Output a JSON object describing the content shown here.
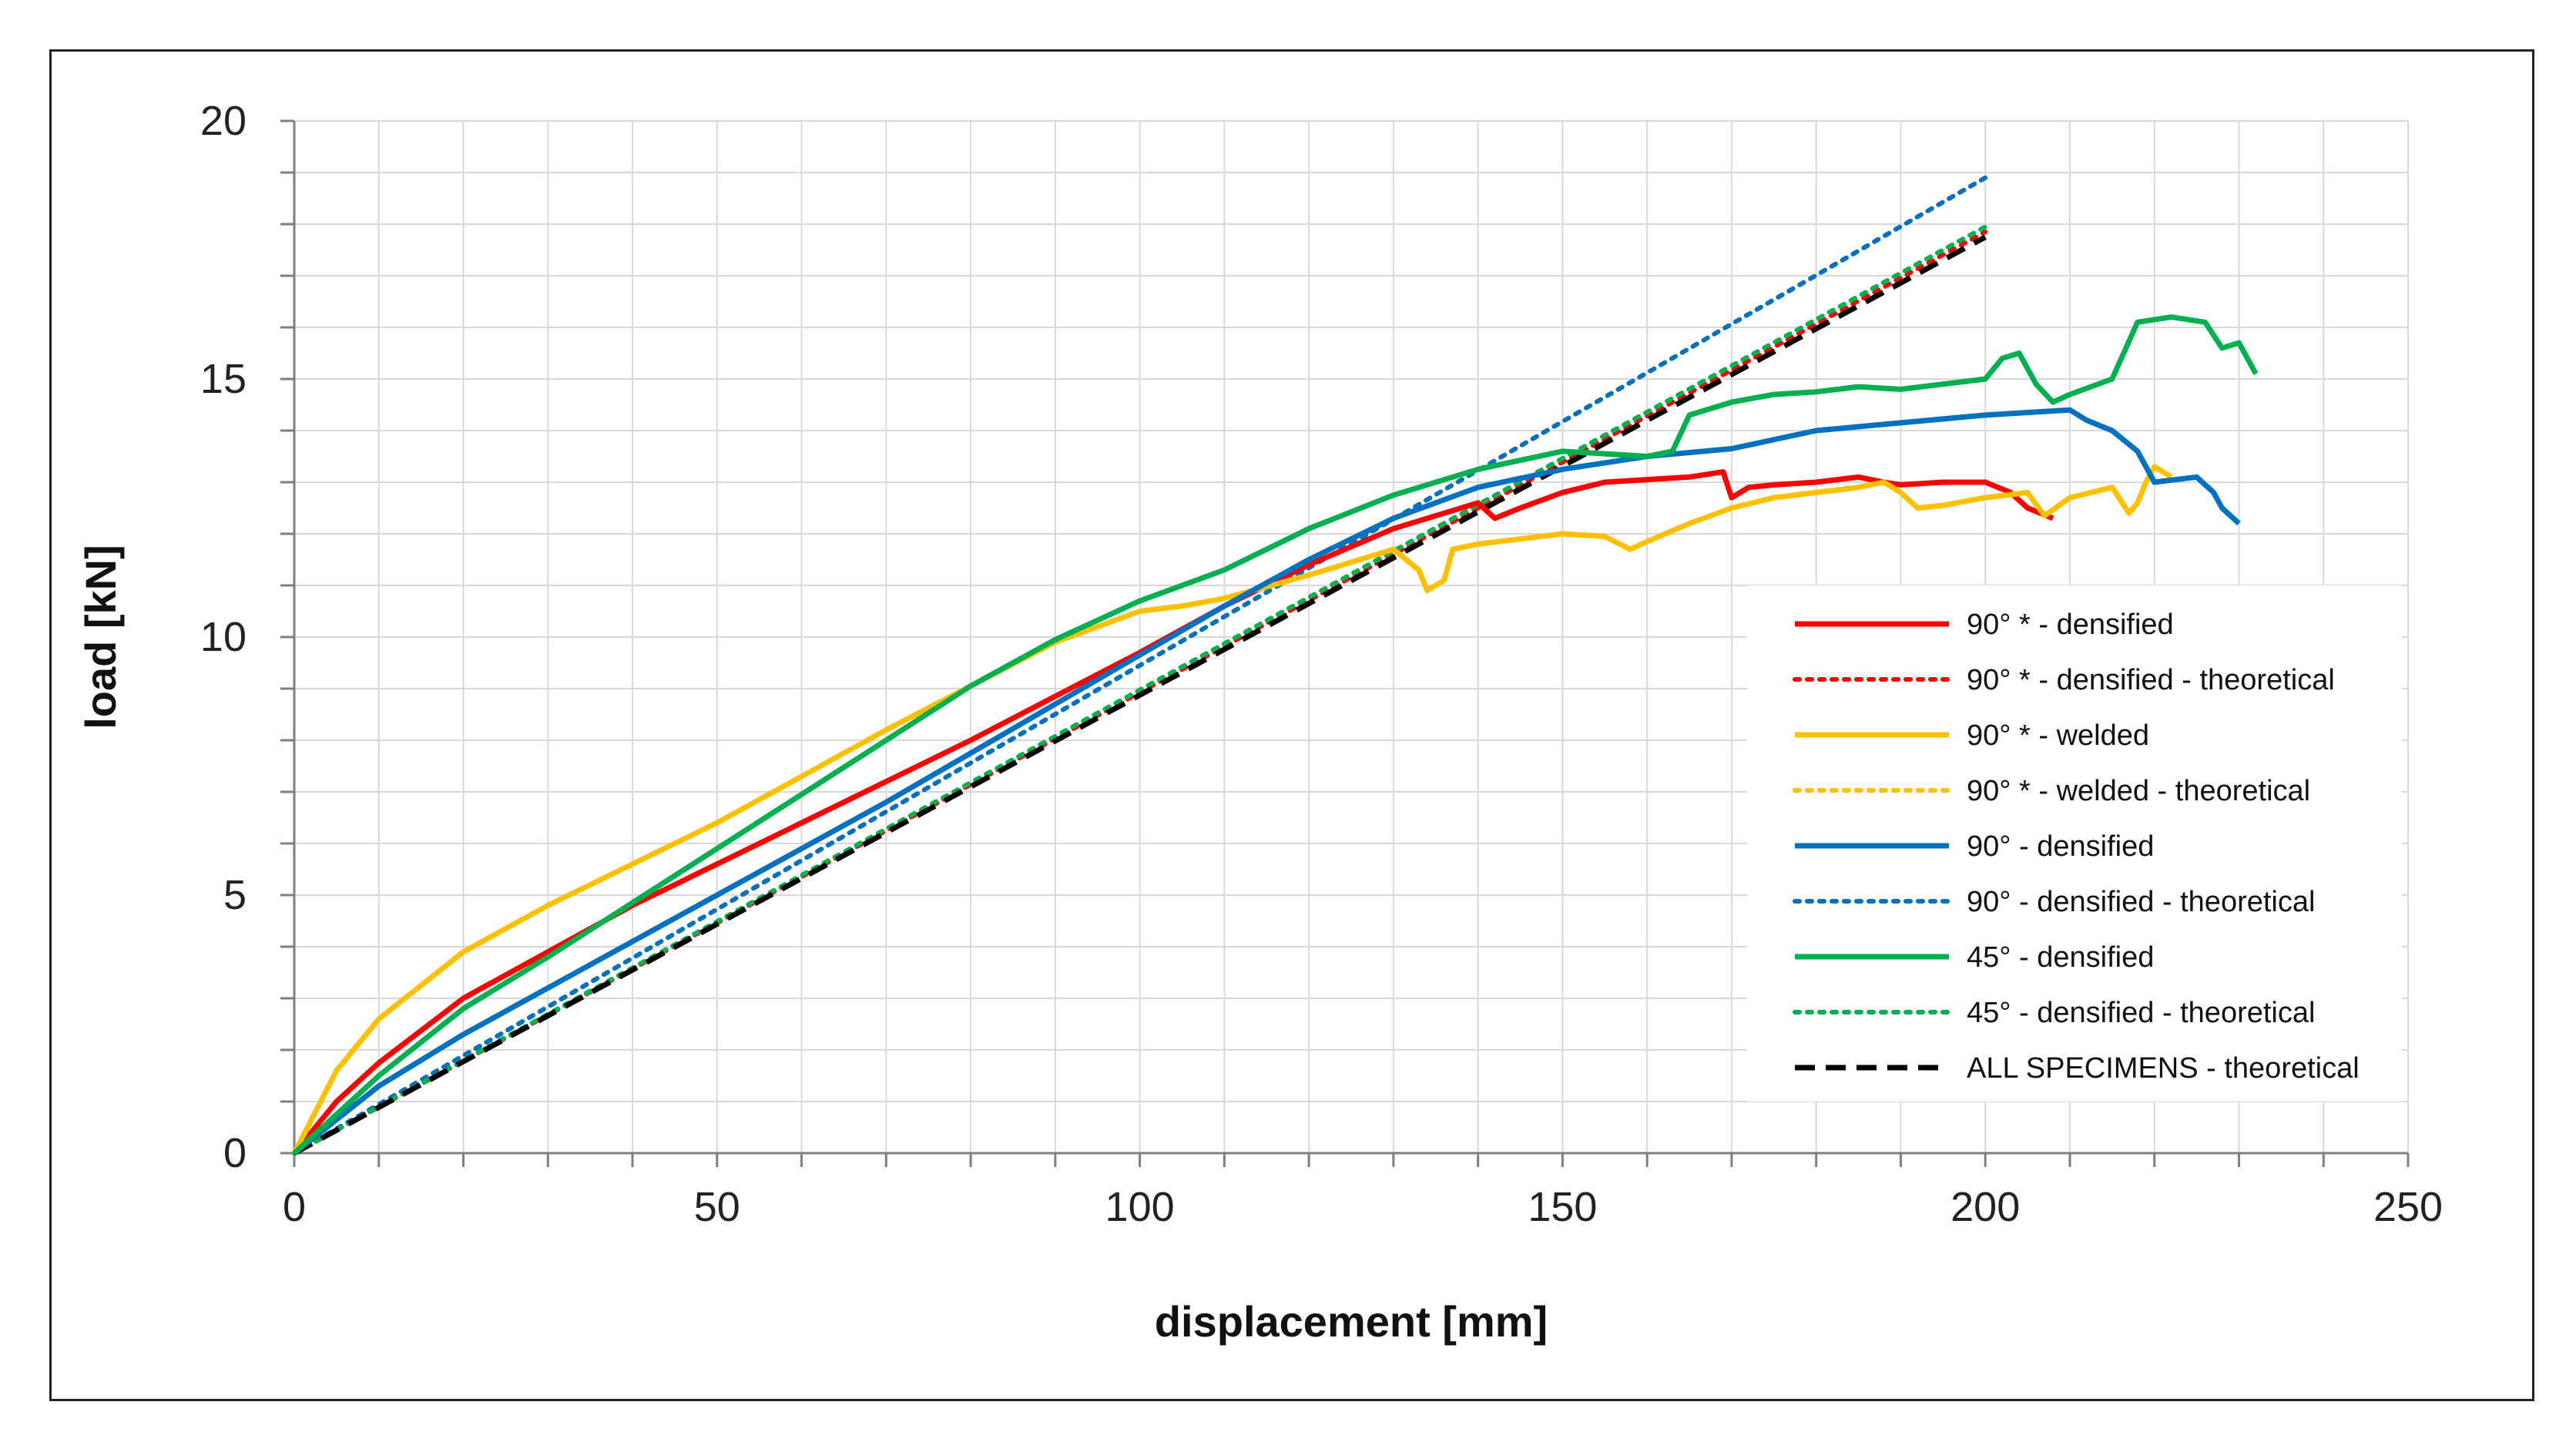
{
  "chart_data": {
    "type": "line",
    "title": "",
    "xlabel": "displacement [mm]",
    "ylabel": "load [kN]",
    "xlim": [
      0,
      250
    ],
    "ylim": [
      0,
      20
    ],
    "xticks": [
      "0",
      "50",
      "100",
      "150",
      "200",
      "250"
    ],
    "yticks": [
      "0",
      "5",
      "10",
      "15",
      "20"
    ],
    "grid": true,
    "legend_position": "right",
    "series": [
      {
        "name": "90° * - densified",
        "color": "#ff0000",
        "style": "solid",
        "x": [
          0,
          5,
          10,
          20,
          30,
          40,
          50,
          60,
          70,
          80,
          90,
          100,
          110,
          120,
          130,
          140,
          142,
          145,
          150,
          155,
          160,
          165,
          169,
          170,
          172,
          175,
          180,
          185,
          188,
          190,
          195,
          200,
          203,
          205,
          208
        ],
        "y": [
          0,
          1.0,
          1.75,
          3.0,
          3.9,
          4.8,
          5.6,
          6.4,
          7.2,
          8.0,
          8.85,
          9.7,
          10.6,
          11.4,
          12.1,
          12.6,
          12.3,
          12.5,
          12.8,
          13.0,
          13.05,
          13.1,
          13.2,
          12.7,
          12.9,
          12.95,
          13.0,
          13.1,
          13.0,
          12.95,
          13.0,
          13.0,
          12.8,
          12.5,
          12.3
        ]
      },
      {
        "name": "90° * - densified - theoretical",
        "color": "#ff0000",
        "style": "dotted",
        "x": [
          0,
          200
        ],
        "y": [
          0,
          17.85
        ]
      },
      {
        "name": "90° * - welded",
        "color": "#ffc000",
        "style": "solid",
        "x": [
          0,
          5,
          10,
          20,
          30,
          40,
          50,
          60,
          70,
          80,
          90,
          100,
          105,
          110,
          120,
          130,
          133,
          134,
          136,
          137,
          140,
          145,
          150,
          155,
          158,
          160,
          165,
          170,
          175,
          180,
          185,
          188,
          190,
          192,
          195,
          200,
          205,
          207,
          210,
          215,
          217,
          218,
          219,
          220,
          222
        ],
        "y": [
          0,
          1.6,
          2.6,
          3.9,
          4.8,
          5.6,
          6.4,
          7.3,
          8.2,
          9.05,
          9.9,
          10.5,
          10.6,
          10.75,
          11.2,
          11.7,
          11.3,
          10.9,
          11.1,
          11.7,
          11.8,
          11.9,
          12.0,
          11.95,
          11.7,
          11.85,
          12.2,
          12.5,
          12.7,
          12.8,
          12.9,
          13.0,
          12.8,
          12.5,
          12.55,
          12.7,
          12.8,
          12.35,
          12.7,
          12.9,
          12.4,
          12.6,
          13.0,
          13.3,
          13.1
        ]
      },
      {
        "name": "90° * - welded - theoretical",
        "color": "#ffc000",
        "style": "dotted",
        "x": [
          0,
          200
        ],
        "y": [
          0,
          18.9
        ]
      },
      {
        "name": "90° - densified",
        "color": "#0070c0",
        "style": "solid",
        "x": [
          0,
          10,
          20,
          30,
          40,
          50,
          60,
          70,
          80,
          90,
          100,
          110,
          120,
          130,
          140,
          150,
          160,
          170,
          180,
          190,
          200,
          205,
          210,
          212,
          215,
          218,
          220,
          225,
          227,
          228,
          230
        ],
        "y": [
          0,
          1.3,
          2.3,
          3.2,
          4.1,
          5.0,
          5.9,
          6.8,
          7.75,
          8.7,
          9.65,
          10.6,
          11.5,
          12.3,
          12.9,
          13.25,
          13.5,
          13.65,
          14.0,
          14.15,
          14.3,
          14.35,
          14.4,
          14.2,
          14.0,
          13.6,
          13.0,
          13.1,
          12.8,
          12.5,
          12.2
        ]
      },
      {
        "name": "90° - densified - theoretical",
        "color": "#0070c0",
        "style": "dotted",
        "x": [
          0,
          200
        ],
        "y": [
          0,
          18.9
        ]
      },
      {
        "name": "45° - densified",
        "color": "#00b050",
        "style": "solid",
        "x": [
          0,
          10,
          20,
          30,
          40,
          50,
          60,
          70,
          80,
          90,
          100,
          110,
          120,
          130,
          140,
          150,
          155,
          160,
          163,
          165,
          170,
          175,
          180,
          185,
          190,
          195,
          200,
          202,
          204,
          206,
          208,
          210,
          215,
          218,
          222,
          226,
          228,
          230,
          232
        ],
        "y": [
          0,
          1.5,
          2.8,
          3.8,
          4.85,
          5.9,
          6.95,
          8.0,
          9.05,
          9.95,
          10.7,
          11.3,
          12.1,
          12.75,
          13.25,
          13.6,
          13.55,
          13.5,
          13.6,
          14.3,
          14.55,
          14.7,
          14.75,
          14.85,
          14.8,
          14.9,
          15.0,
          15.4,
          15.5,
          14.9,
          14.55,
          14.7,
          15.0,
          16.1,
          16.2,
          16.1,
          15.6,
          15.7,
          15.1
        ]
      },
      {
        "name": "45° - densified - theoretical",
        "color": "#00b050",
        "style": "dotted",
        "x": [
          0,
          200
        ],
        "y": [
          0,
          17.95
        ]
      },
      {
        "name": "ALL SPECIMENS - theoretical",
        "color": "#000000",
        "style": "dashed",
        "x": [
          0,
          200
        ],
        "y": [
          0,
          17.75
        ]
      }
    ]
  }
}
